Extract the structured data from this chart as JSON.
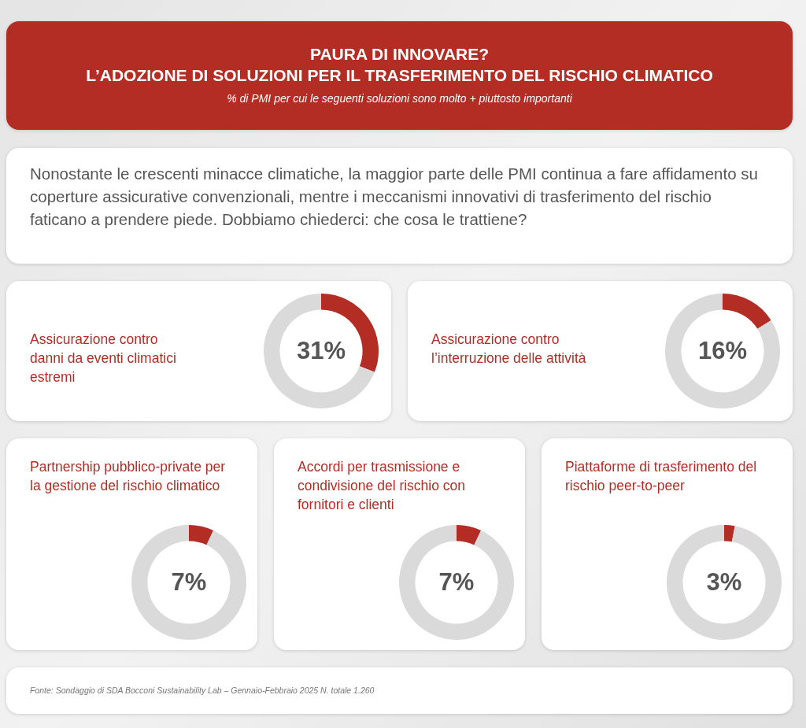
{
  "chart_data": [
    {
      "type": "other",
      "title": "PAURA DI INNOVARE?\nL’ADOZIONE DI SOLUZIONI PER IL TRASFERIMENTO DEL RISCHIO CLIMATICO",
      "subtitle": "% di PMI per cui le seguenti soluzioni sono molto + piuttosto importanti",
      "annotations": [
        "Nonostante le crescenti minacce climatiche, la maggior parte delle PMI continua a fare affidamento su coperture assicurative convenzionali, mentre i meccanismi innovativi di trasferimento del rischio faticano a prendere piede. Dobbiamo chiederci: che cosa le trattiene?",
        "Fonte: Sondaggio di SDA Bocconi Sustainability Lab – Gennaio-Febbraio 2025 N. totale 1.260"
      ]
    },
    {
      "type": "donut",
      "title": "Assicurazione contro danni da eventi climatici estremi",
      "categories": [
        null,
        null
      ],
      "values": [
        31,
        69
      ],
      "colors": [
        "#b32d24",
        "#dadada"
      ],
      "value_labels": [
        "31%",
        null
      ],
      "legend": false
    },
    {
      "type": "donut",
      "title": "Assicurazione contro l’interruzione delle attività",
      "categories": [
        null,
        null
      ],
      "values": [
        16,
        84
      ],
      "colors": [
        "#b32d24",
        "#dadada"
      ],
      "value_labels": [
        "16%",
        null
      ],
      "legend": false
    },
    {
      "type": "donut",
      "title": "Partnership pubblico-private per la gestione del rischio climatico",
      "categories": [
        null,
        null
      ],
      "values": [
        7,
        93
      ],
      "colors": [
        "#b32d24",
        "#dadada"
      ],
      "value_labels": [
        "7%",
        null
      ],
      "legend": false
    },
    {
      "type": "donut",
      "title": "Accordi per trasmissione e condivisione del rischio con fornitori e clienti",
      "categories": [
        null,
        null
      ],
      "values": [
        7,
        93
      ],
      "colors": [
        "#b32d24",
        "#dadada"
      ],
      "value_labels": [
        "7%",
        null
      ],
      "legend": false
    },
    {
      "type": "donut",
      "title": "Piattaforme di trasferimento del rischio peer-to-peer",
      "categories": [
        null,
        null
      ],
      "values": [
        3,
        97
      ],
      "colors": [
        "#b32d24",
        "#dadada"
      ],
      "value_labels": [
        "3%",
        null
      ],
      "legend": false
    }
  ]
}
